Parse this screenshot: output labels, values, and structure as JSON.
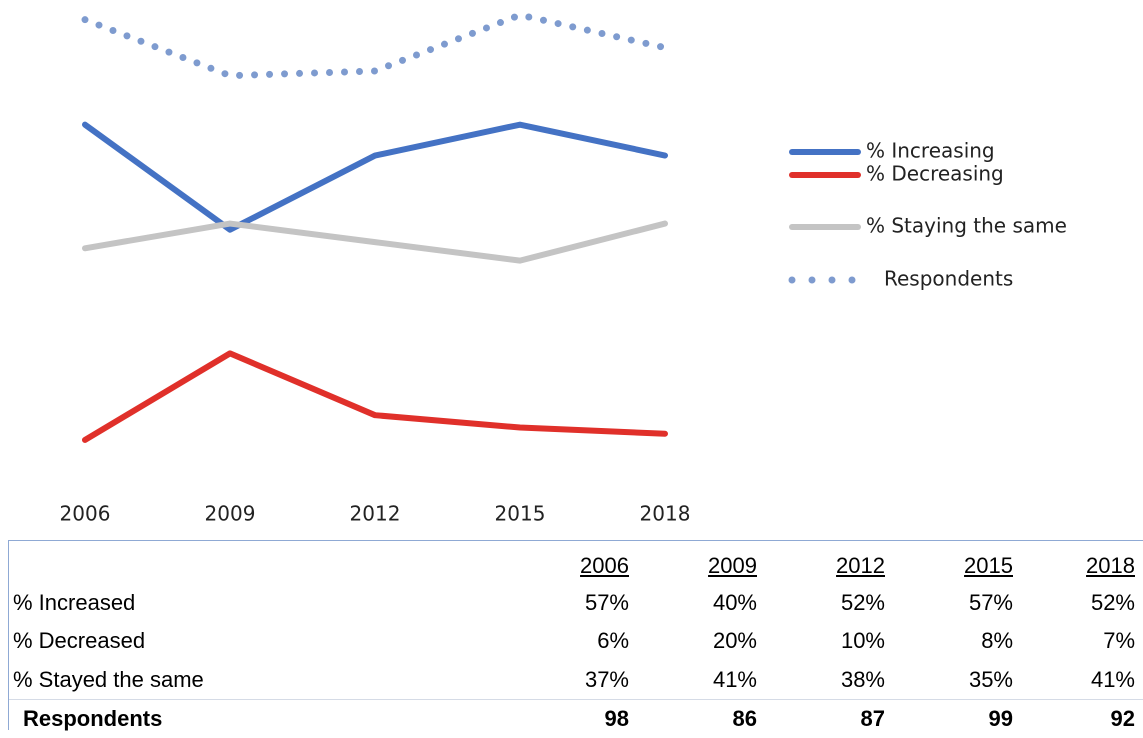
{
  "chart_data": {
    "type": "line",
    "categories": [
      "2006",
      "2009",
      "2012",
      "2015",
      "2018"
    ],
    "series": [
      {
        "name": "% Increasing",
        "color": "#4472c4",
        "style": "solid",
        "values": [
          57,
          40,
          52,
          57,
          52
        ]
      },
      {
        "name": "% Decreasing",
        "color": "#e0302a",
        "style": "solid",
        "values": [
          6,
          20,
          10,
          8,
          7
        ]
      },
      {
        "name": "% Staying the same",
        "color": "#c4c4c4",
        "style": "solid",
        "values": [
          37,
          41,
          38,
          35,
          41
        ]
      },
      {
        "name": "Respondents",
        "color": "#7e9bcf",
        "style": "dotted",
        "axis": "y2",
        "values": [
          98,
          86,
          87,
          99,
          92
        ]
      }
    ],
    "ylim": [
      0,
      77
    ],
    "y2lim": [
      0,
      102
    ],
    "legend": "right"
  },
  "table": {
    "columns": [
      "2006",
      "2009",
      "2012",
      "2015",
      "2018"
    ],
    "rows": [
      {
        "label": "% Increased",
        "cells": [
          "57%",
          "40%",
          "52%",
          "57%",
          "52%"
        ]
      },
      {
        "label": "% Decreased",
        "cells": [
          "6%",
          "20%",
          "10%",
          "8%",
          "7%"
        ]
      },
      {
        "label": "% Stayed the same",
        "cells": [
          "37%",
          "41%",
          "38%",
          "35%",
          "41%"
        ]
      },
      {
        "label": "Respondents",
        "cells": [
          "98",
          "86",
          "87",
          "99",
          "92"
        ]
      }
    ]
  }
}
